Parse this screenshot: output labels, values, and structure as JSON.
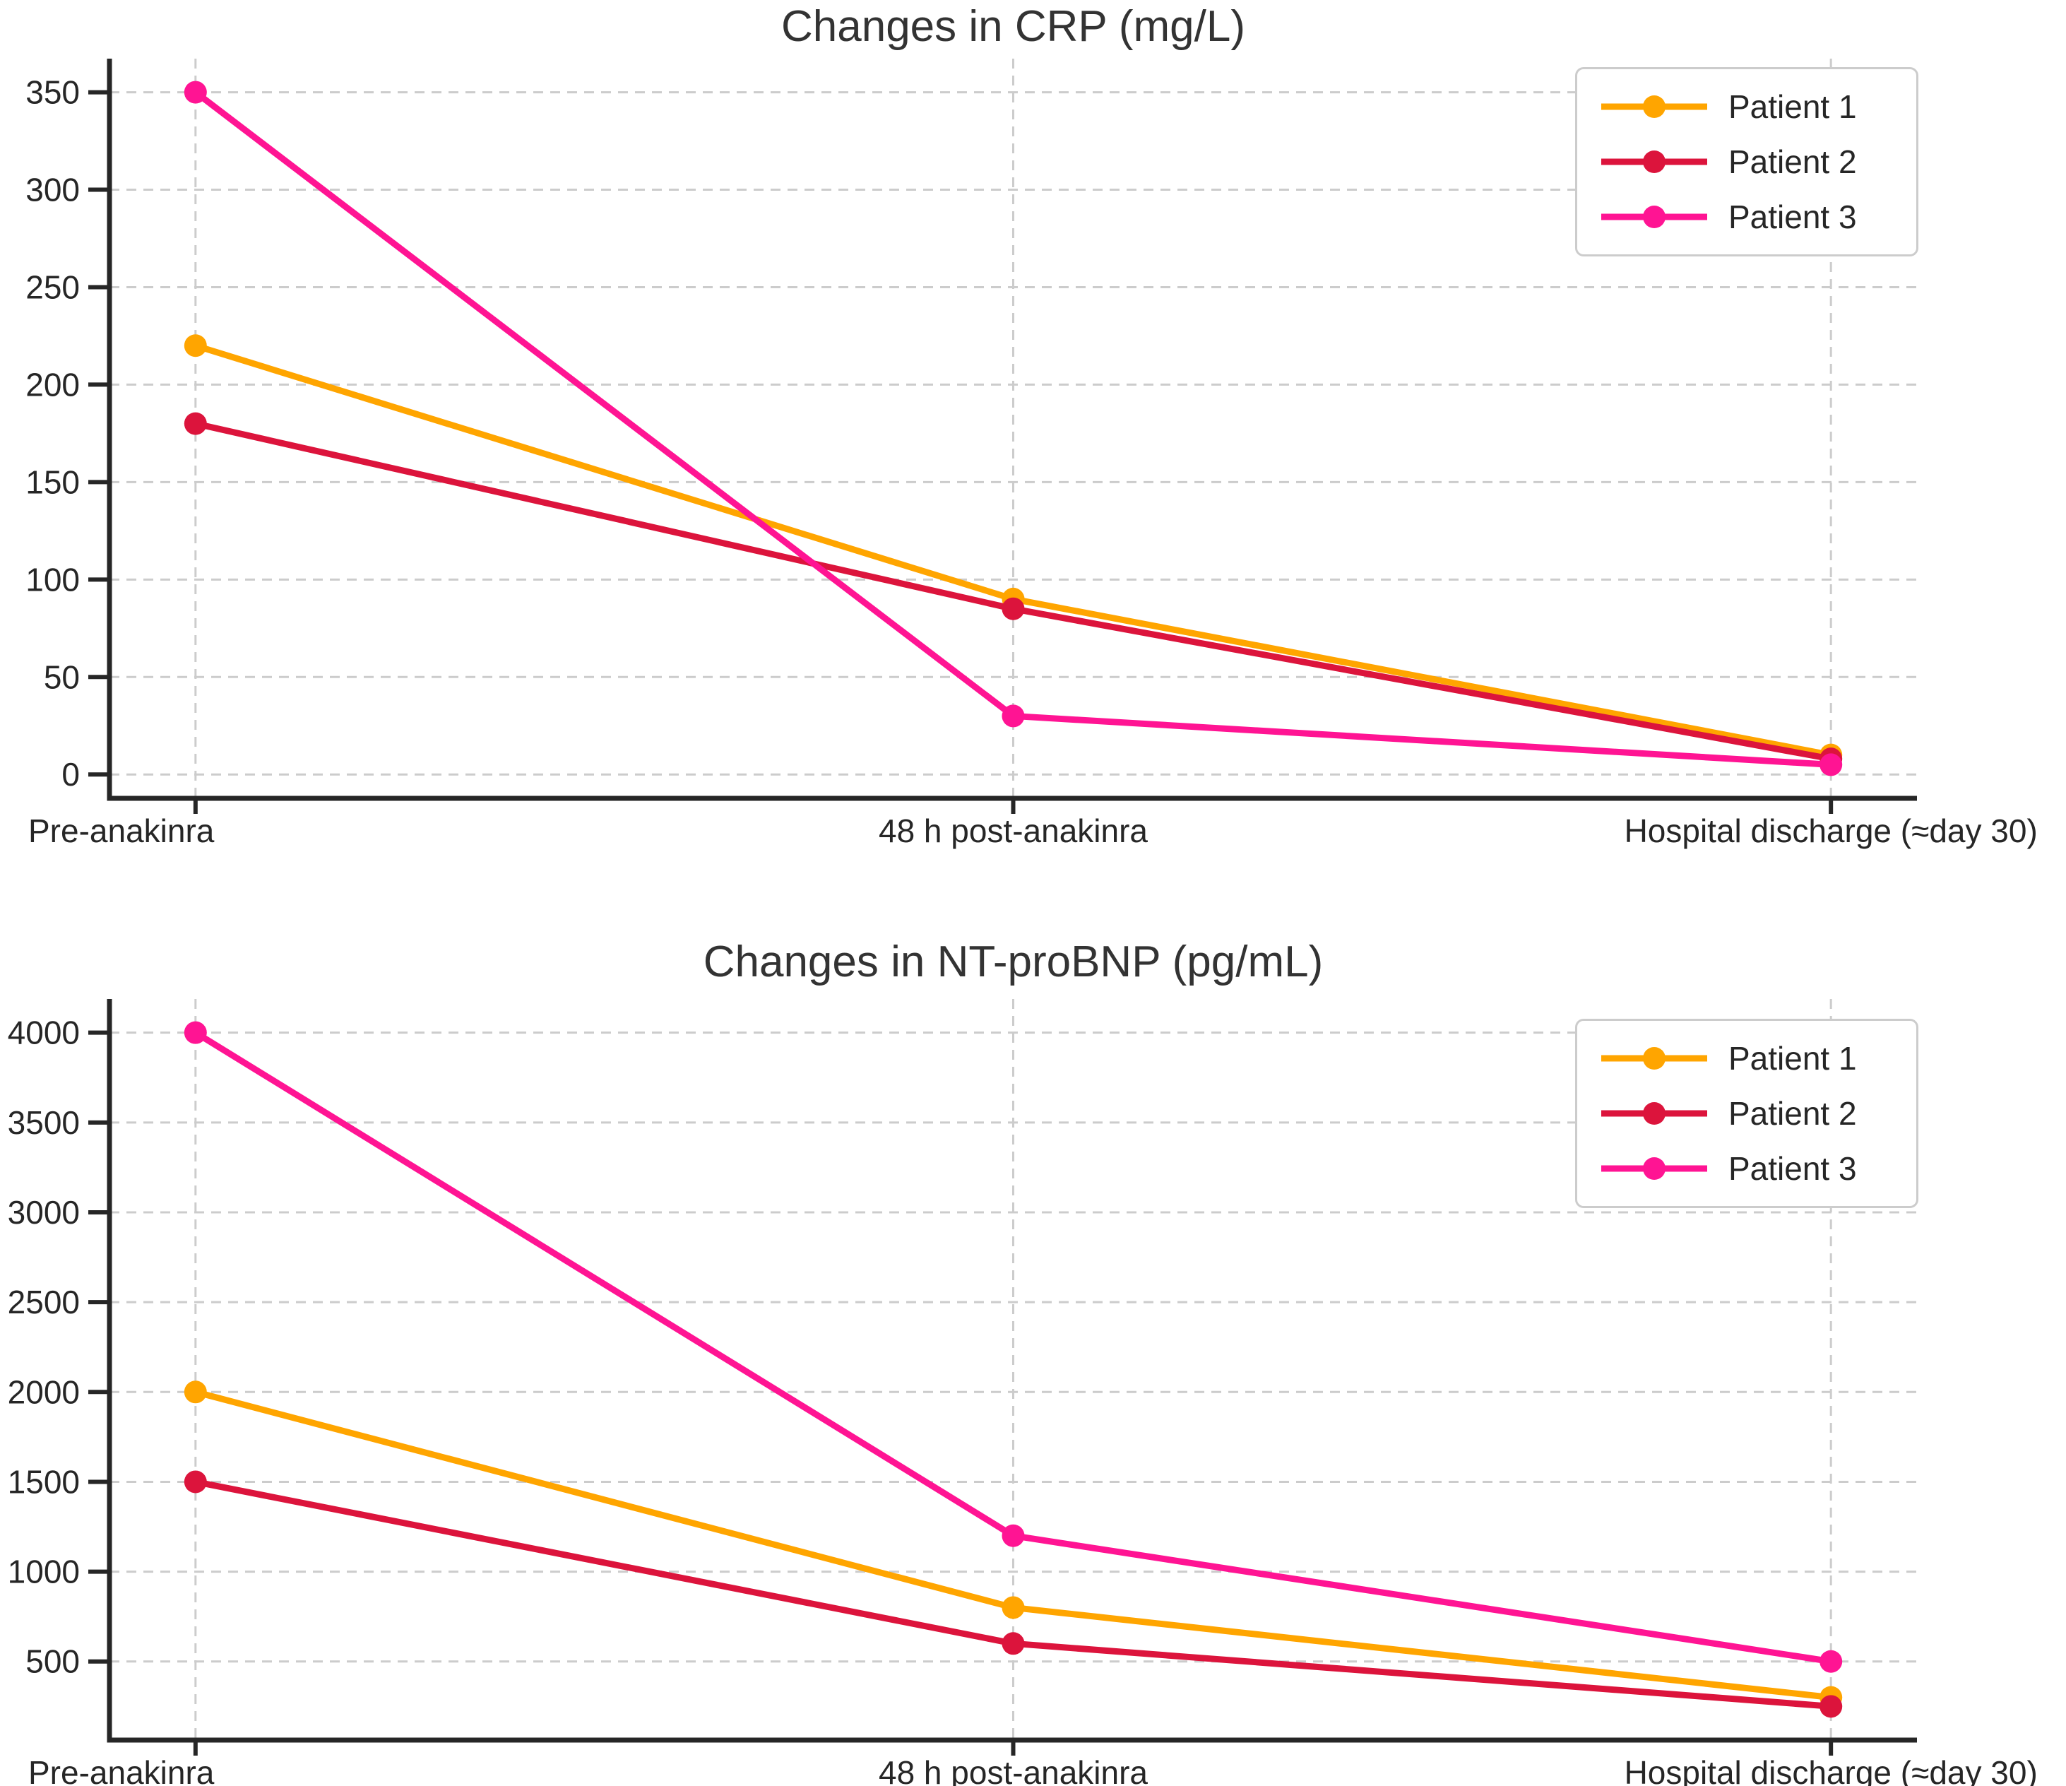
{
  "chart_data": [
    {
      "type": "line",
      "title": "Changes in CRP (mg/L)",
      "xlabel": "",
      "ylabel": "",
      "categories": [
        "Pre-anakinra",
        "48 h post-anakinra",
        "Hospital discharge (≈day 30)"
      ],
      "series": [
        {
          "name": "Patient 1",
          "color": "#FFA500",
          "values": [
            220,
            90,
            10
          ]
        },
        {
          "name": "Patient 2",
          "color": "#DC143C",
          "values": [
            180,
            85,
            8
          ]
        },
        {
          "name": "Patient 3",
          "color": "#FF1493",
          "values": [
            350,
            30,
            5
          ]
        }
      ],
      "yticks": [
        0,
        50,
        100,
        150,
        200,
        250,
        300,
        350
      ],
      "ylim": [
        -12.25,
        367.25
      ],
      "grid": true,
      "legend_position": "upper right"
    },
    {
      "type": "line",
      "title": "Changes in NT-proBNP (pg/mL)",
      "xlabel": "",
      "ylabel": "",
      "categories": [
        "Pre-anakinra",
        "48 h post-anakinra",
        "Hospital discharge (≈day 30)"
      ],
      "series": [
        {
          "name": "Patient 1",
          "color": "#FFA500",
          "values": [
            2000,
            800,
            300
          ]
        },
        {
          "name": "Patient 2",
          "color": "#DC143C",
          "values": [
            1500,
            600,
            250
          ]
        },
        {
          "name": "Patient 3",
          "color": "#FF1493",
          "values": [
            4000,
            1200,
            500
          ]
        }
      ],
      "yticks": [
        500,
        1000,
        1500,
        2000,
        2500,
        3000,
        3500,
        4000
      ],
      "ylim": [
        62.5,
        4187.5
      ],
      "grid": true,
      "legend_position": "upper right"
    }
  ],
  "styles": {
    "grid_color": "#cccccc",
    "axis_color": "#262626",
    "tick_label_color": "#262626",
    "title_color": "#333333",
    "background": "#ffffff"
  }
}
